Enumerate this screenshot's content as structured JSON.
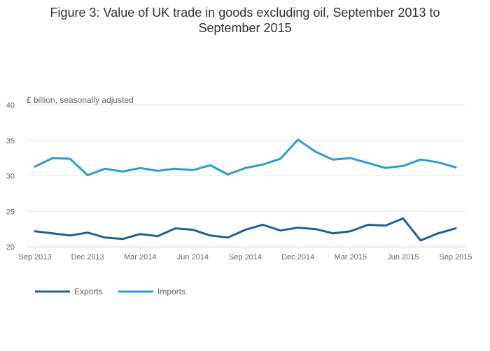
{
  "chart_data": {
    "type": "line",
    "title_lines": [
      "Figure 3: Value of UK trade in goods excluding oil, September 2013 to",
      "September 2015"
    ],
    "ylabel": "£ billion, seasonally adjusted",
    "xlabel": "",
    "ylim": [
      20,
      40
    ],
    "yticks": [
      20,
      25,
      30,
      35,
      40
    ],
    "x": [
      "Sep 2013",
      "Oct 2013",
      "Nov 2013",
      "Dec 2013",
      "Jan 2014",
      "Feb 2014",
      "Mar 2014",
      "Apr 2014",
      "May 2014",
      "Jun 2014",
      "Jul 2014",
      "Aug 2014",
      "Sep 2014",
      "Oct 2014",
      "Nov 2014",
      "Dec 2014",
      "Jan 2015",
      "Feb 2015",
      "Mar 2015",
      "Apr 2015",
      "May 2015",
      "Jun 2015",
      "Jul 2015",
      "Aug 2015",
      "Sep 2015"
    ],
    "xtick_labels": [
      {
        "index": 0,
        "label": "Sep 2013"
      },
      {
        "index": 3,
        "label": "Dec 2013"
      },
      {
        "index": 6,
        "label": "Mar 2014"
      },
      {
        "index": 9,
        "label": "Jun 2014"
      },
      {
        "index": 12,
        "label": "Sep 2014"
      },
      {
        "index": 15,
        "label": "Dec 2014"
      },
      {
        "index": 18,
        "label": "Mar 2015"
      },
      {
        "index": 21,
        "label": "Jun 2015"
      },
      {
        "index": 24,
        "label": "Sep 2015"
      }
    ],
    "series": [
      {
        "name": "Exports",
        "color": "#206095",
        "values": [
          22.2,
          21.9,
          21.6,
          22.0,
          21.3,
          21.1,
          21.8,
          21.5,
          22.6,
          22.4,
          21.6,
          21.3,
          22.4,
          23.1,
          22.3,
          22.7,
          22.5,
          21.9,
          22.2,
          23.1,
          23.0,
          24.0,
          20.9,
          21.9,
          22.6
        ]
      },
      {
        "name": "Imports",
        "color": "#27a0cc",
        "values": [
          31.3,
          32.5,
          32.4,
          30.1,
          31.0,
          30.6,
          31.1,
          30.7,
          31.0,
          30.8,
          31.5,
          30.2,
          31.1,
          31.6,
          32.4,
          35.1,
          33.4,
          32.3,
          32.5,
          31.8,
          31.1,
          31.4,
          32.3,
          31.9,
          31.2
        ]
      }
    ],
    "legend": "bottom-left",
    "grid": true
  }
}
